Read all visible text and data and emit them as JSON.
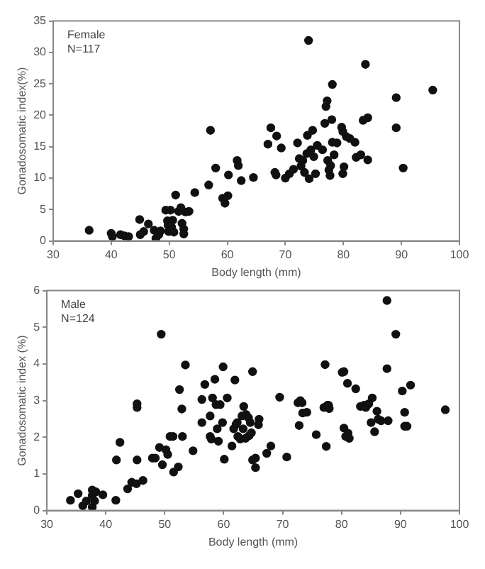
{
  "chart_data": [
    {
      "type": "scatter",
      "xlabel": "Body length (mm)",
      "ylabel": "Gonadosomatic index(%)",
      "annotations": [
        "Female",
        "N=117"
      ],
      "xlim": [
        30,
        100
      ],
      "xticks": [
        30,
        40,
        50,
        60,
        70,
        80,
        90,
        100
      ],
      "ylim": [
        0,
        35
      ],
      "yticks": [
        0,
        5,
        10,
        15,
        20,
        25,
        30,
        35
      ],
      "grid": false,
      "legend": false,
      "marker": "circle",
      "series": [
        {
          "color": "#111111",
          "x": [
            36.2,
            40,
            40.2,
            41.6,
            42.3,
            43,
            44.9,
            45,
            45.6,
            46.4,
            47.4,
            47.7,
            48.2,
            48.5,
            49.4,
            49.7,
            49.8,
            49.9,
            50.2,
            50.4,
            50.6,
            50.8,
            51.1,
            51.6,
            52,
            52.2,
            52.5,
            52.5,
            52.8,
            53.4,
            54.4,
            56.8,
            57.1,
            58,
            59.2,
            59.6,
            60.1,
            60.2,
            61.7,
            61.9,
            62.4,
            64.5,
            67,
            67.5,
            68.5,
            68.2,
            68.4,
            69.3,
            70,
            70.7,
            71.4,
            72.1,
            72.4,
            72.7,
            73,
            73.3,
            73.7,
            73.8,
            74,
            74.1,
            74.4,
            74.7,
            74.9,
            75.2,
            75.5,
            76.4,
            76.8,
            77,
            77.2,
            77.3,
            77.5,
            77.7,
            77.8,
            78,
            78.1,
            78.1,
            78.4,
            78.9,
            79.7,
            79.9,
            80.1,
            79.9,
            80.5,
            81.1,
            82,
            82.2,
            83,
            83.4,
            83.8,
            84.2,
            84.2,
            89.1,
            89.1,
            90.3,
            95.4
          ],
          "values": [
            1.7,
            1.2,
            0.7,
            1.0,
            0.8,
            0.7,
            3.4,
            1.0,
            1.5,
            2.7,
            1.7,
            0.4,
            1.0,
            1.6,
            4.9,
            3.2,
            2.5,
            1.5,
            4.9,
            2.2,
            3.3,
            1.4,
            7.3,
            4.7,
            5.3,
            2.8,
            1.9,
            1.1,
            4.6,
            4.7,
            7.7,
            8.9,
            17.6,
            11.6,
            6.8,
            6.0,
            7.2,
            10.5,
            12.8,
            12.0,
            9.6,
            10.1,
            15.4,
            18.0,
            16.7,
            10.9,
            10.5,
            14.8,
            10.0,
            10.7,
            11.4,
            15.6,
            13.1,
            11.9,
            12.8,
            10.9,
            13.9,
            16.8,
            31.9,
            9.9,
            14.5,
            17.6,
            13.4,
            10.7,
            15.2,
            14.5,
            18.7,
            21.4,
            22.3,
            12.8,
            11.3,
            10.4,
            12.0,
            19.3,
            24.9,
            15.7,
            13.7,
            15.6,
            18.1,
            17.4,
            11.8,
            10.7,
            16.6,
            16.3,
            15.7,
            13.3,
            13.7,
            19.2,
            28.1,
            19.6,
            12.9,
            22.8,
            18.0,
            11.6,
            24.0
          ]
        }
      ]
    },
    {
      "type": "scatter",
      "xlabel": "Body length (mm)",
      "ylabel": "Gonadosomatic index (%)",
      "annotations": [
        "Male",
        "N=124"
      ],
      "xlim": [
        30,
        100
      ],
      "xticks": [
        30,
        40,
        50,
        60,
        70,
        80,
        90,
        100
      ],
      "ylim": [
        0,
        6
      ],
      "yticks": [
        0,
        1,
        2,
        3,
        4,
        5,
        6
      ],
      "grid": false,
      "legend": false,
      "marker": "circle",
      "series": [
        {
          "color": "#111111",
          "x": [
            34,
            35.3,
            36.1,
            36.7,
            37.7,
            37.7,
            38.1,
            37.7,
            38.3,
            39.5,
            41.7,
            41.8,
            42.4,
            43.7,
            44.4,
            45.2,
            45.3,
            45.3,
            45.3,
            46.3,
            47.9,
            48.4,
            49.1,
            49.4,
            49.6,
            50.2,
            50.5,
            50.9,
            51.4,
            51.5,
            52.3,
            52.5,
            52.9,
            53,
            53.5,
            54.8,
            56.3,
            56.3,
            56.8,
            57.7,
            57.7,
            57.9,
            58.1,
            58.5,
            58.7,
            58.9,
            59.1,
            59.4,
            59.8,
            59.9,
            60.1,
            60.6,
            61.4,
            61.7,
            61.9,
            62.1,
            62.3,
            62.4,
            62.8,
            63.1,
            63.3,
            63.4,
            63.7,
            63.8,
            64.2,
            64.3,
            64.5,
            64.7,
            64.9,
            64.9,
            65.4,
            65.4,
            65.9,
            66,
            67.3,
            68,
            69.5,
            70.7,
            72.6,
            73,
            72.8,
            73.3,
            73.4,
            74.1,
            75.7,
            77.2,
            77,
            77.4,
            77.6,
            77.9,
            77.8,
            80.1,
            80.4,
            80.4,
            80.7,
            81,
            81.1,
            81.3,
            82.4,
            83.2,
            83.8,
            84.1,
            84.6,
            85.2,
            85,
            85.6,
            86,
            86.2,
            86.7,
            87.7,
            87.7,
            87.9,
            89.2,
            90.3,
            90.7,
            90.7,
            91.1,
            91.7,
            97.6
          ],
          "values": [
            0.28,
            0.46,
            0.13,
            0.26,
            0.56,
            0.41,
            0.26,
            0.09,
            0.51,
            0.43,
            0.28,
            1.38,
            1.86,
            0.59,
            0.77,
            0.73,
            2.81,
            2.91,
            1.38,
            0.82,
            1.43,
            1.43,
            1.72,
            4.81,
            1.25,
            1.66,
            1.53,
            2.02,
            2.02,
            1.05,
            1.19,
            3.3,
            2.77,
            2.02,
            3.97,
            1.63,
            2.4,
            3.03,
            3.44,
            2.58,
            2.02,
            1.95,
            3.07,
            3.58,
            2.89,
            2.23,
            1.89,
            2.89,
            2.4,
            3.92,
            1.4,
            3.07,
            1.76,
            2.23,
            3.56,
            2.35,
            2.4,
            2.02,
            1.95,
            2.58,
            2.23,
            2.84,
            1.97,
            2.62,
            2.53,
            2.04,
            2.4,
            2.12,
            3.79,
            1.38,
            1.43,
            1.17,
            2.34,
            2.49,
            1.56,
            1.76,
            3.09,
            1.46,
            2.94,
            3.0,
            2.32,
            2.94,
            2.66,
            2.68,
            2.07,
            3.98,
            2.81,
            1.75,
            2.87,
            2.78,
            2.87,
            3.77,
            3.79,
            2.25,
            2.02,
            3.47,
            2.11,
            1.97,
            3.32,
            2.84,
            2.87,
            2.81,
            2.91,
            3.07,
            2.4,
            2.15,
            2.71,
            2.49,
            2.45,
            5.73,
            3.87,
            2.45,
            4.81,
            3.26,
            2.68,
            2.3,
            2.3,
            3.42,
            2.75
          ]
        }
      ]
    }
  ]
}
